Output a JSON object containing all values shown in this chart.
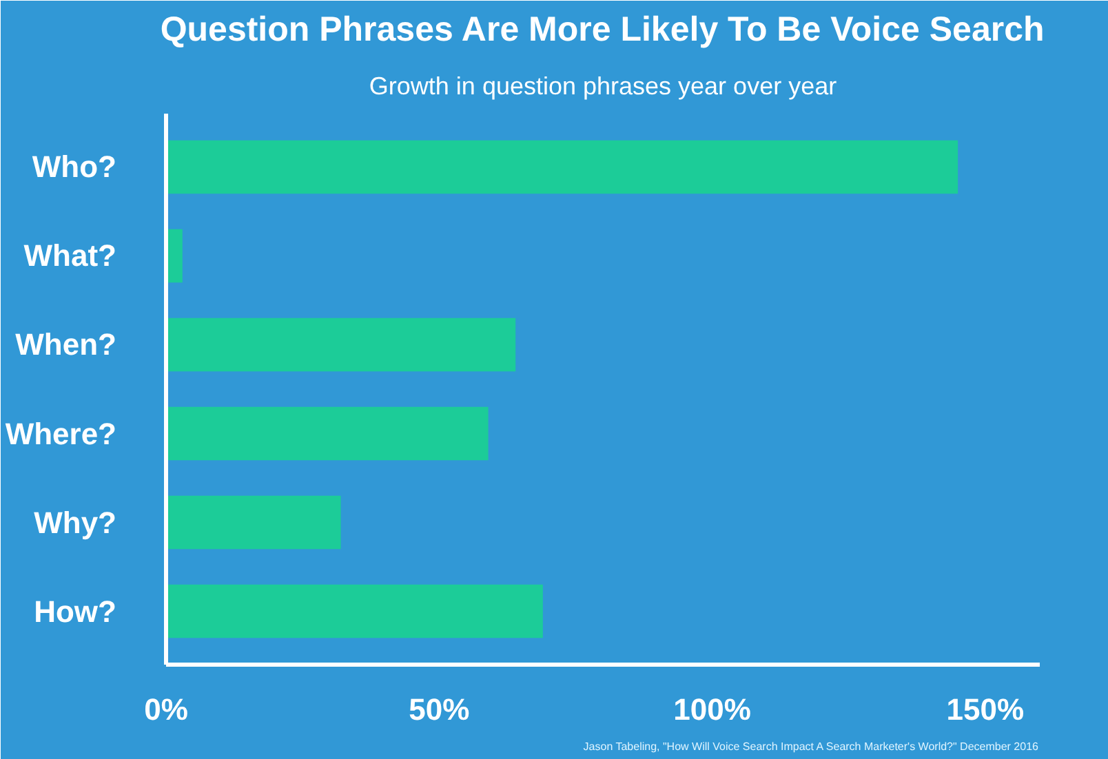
{
  "chart_data": {
    "type": "bar",
    "orientation": "horizontal",
    "title": "Question Phrases Are More Likely To Be Voice Search",
    "subtitle": "Growth in question phrases year over year",
    "categories": [
      "Who?",
      "What?",
      "When?",
      "Where?",
      "Why?",
      "How?"
    ],
    "values": [
      145,
      3,
      64,
      59,
      32,
      69
    ],
    "color": "#1ccc98",
    "xlim": [
      0,
      160
    ],
    "xticks": [
      {
        "value": 0,
        "label": "0%"
      },
      {
        "value": 50,
        "label": "50%"
      },
      {
        "value": 100,
        "label": "100%"
      },
      {
        "value": 150,
        "label": "150%"
      }
    ],
    "grid": false,
    "annotations": [
      "Jason Tabeling, \"How Will Voice Search Impact A Search Marketer's World?\" December 2016"
    ]
  }
}
